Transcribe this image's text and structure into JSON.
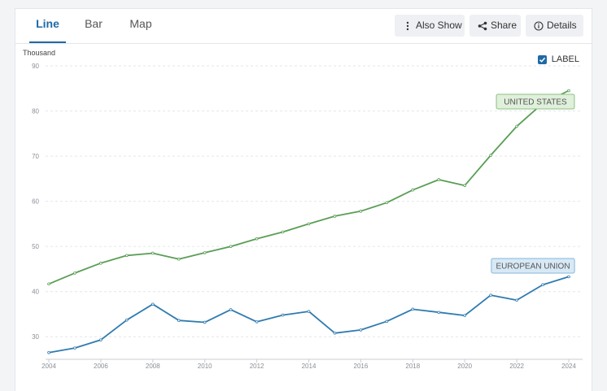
{
  "tabs": [
    {
      "label": "Line",
      "active": true
    },
    {
      "label": "Bar",
      "active": false
    },
    {
      "label": "Map",
      "active": false
    }
  ],
  "toolbar": {
    "also_show": {
      "label": "Also Show",
      "icon": "vertical-dots-icon"
    },
    "share": {
      "label": "Share",
      "icon": "share-icon"
    },
    "details": {
      "label": "Details",
      "icon": "info-icon"
    }
  },
  "label_toggle": {
    "label": "LABEL",
    "checked": true
  },
  "colors": {
    "accent": "#1f6aa6",
    "us_line": "#5a9e55",
    "eu_line": "#2f7bb0",
    "us_label_bg": "#dff0db",
    "us_label_border": "#8cc083",
    "eu_label_bg": "#d8e9f6",
    "eu_label_border": "#86b6da"
  },
  "chart_data": {
    "type": "line",
    "ylabel": "Thousand",
    "ylim": [
      25,
      90
    ],
    "yticks": [
      30,
      40,
      50,
      60,
      70,
      80,
      90
    ],
    "xlim": [
      2004,
      2024
    ],
    "xticks": [
      2004,
      2006,
      2008,
      2010,
      2012,
      2014,
      2016,
      2018,
      2020,
      2022,
      2024
    ],
    "grid": true,
    "x": [
      2004,
      2005,
      2006,
      2007,
      2008,
      2009,
      2010,
      2011,
      2012,
      2013,
      2014,
      2015,
      2016,
      2017,
      2018,
      2019,
      2020,
      2021,
      2022,
      2023,
      2024
    ],
    "series": [
      {
        "name": "UNITED STATES",
        "values": [
          41.7,
          44.1,
          46.3,
          48.0,
          48.5,
          47.2,
          48.6,
          50.0,
          51.7,
          53.2,
          55.0,
          56.7,
          57.8,
          59.7,
          62.5,
          64.8,
          63.5,
          70.2,
          76.6,
          81.7,
          84.5
        ]
      },
      {
        "name": "EUROPEAN UNION",
        "values": [
          26.5,
          27.5,
          29.3,
          33.7,
          37.2,
          33.6,
          33.2,
          36.0,
          33.3,
          34.8,
          35.6,
          30.8,
          31.5,
          33.4,
          36.1,
          35.4,
          34.7,
          39.2,
          38.1,
          41.5,
          43.3
        ]
      }
    ]
  }
}
